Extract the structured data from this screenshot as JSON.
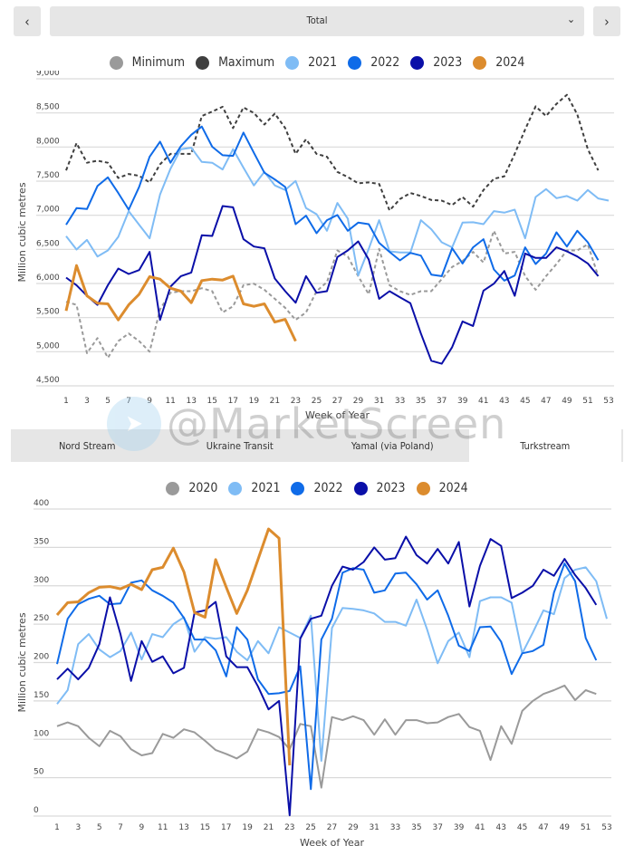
{
  "nav": {
    "prev_icon": "chevron-left-icon",
    "next_icon": "chevron-right-icon",
    "prev_glyph": "‹",
    "next_glyph": "›",
    "selected": "Total",
    "dropdown_glyph": "⌄"
  },
  "watermark": "@MarketScreen",
  "tabs": [
    {
      "label": "Nord Stream",
      "active": false
    },
    {
      "label": "Ukraine Transit",
      "active": false
    },
    {
      "label": "Yamal (via Poland)",
      "active": false
    },
    {
      "label": "Turkstream",
      "active": true
    }
  ],
  "chart_data": [
    {
      "type": "line",
      "ylabel": "Million cubic metres",
      "xlabel": "Week of Year",
      "ylim": [
        4500,
        9000
      ],
      "yticks": [
        "9,000",
        "8,500",
        "8,000",
        "7,500",
        "7,000",
        "6,500",
        "6,000",
        "5,500",
        "5,000",
        "4,500"
      ],
      "ytick_values": [
        9000,
        8500,
        8000,
        7500,
        7000,
        6500,
        6000,
        5500,
        5000,
        4500
      ],
      "xlim": [
        1,
        53
      ],
      "xticks": [
        "1",
        "3",
        "5",
        "7",
        "9",
        "11",
        "13",
        "15",
        "17",
        "19",
        "21",
        "23",
        "25",
        "27",
        "29",
        "31",
        "33",
        "35",
        "37",
        "39",
        "41",
        "43",
        "45",
        "47",
        "49",
        "51",
        "53"
      ],
      "grid": "horizontal",
      "legend": "top",
      "series": [
        {
          "name": "Minimum",
          "color": "#9a9a9a",
          "dashed": true,
          "values": [
            5732,
            5687,
            4979,
            5200,
            4912,
            5156,
            5267,
            5156,
            5000,
            5621,
            5864,
            5887,
            5887,
            5931,
            5887,
            5577,
            5665,
            5975,
            5998,
            5909,
            5776,
            5643,
            5466,
            5577,
            5887,
            6020,
            6485,
            6396,
            6108,
            5842,
            6507,
            5975,
            5887,
            5833,
            5887,
            5887,
            6064,
            6241,
            6330,
            6463,
            6308,
            6772,
            6440,
            6463,
            6108,
            5909,
            6108,
            6285,
            6485,
            6485,
            6573,
            6108
          ]
        },
        {
          "name": "Maximum",
          "color": "#3f3f3f",
          "dashed": true,
          "values": [
            7658,
            8057,
            7769,
            7800,
            7769,
            7547,
            7605,
            7578,
            7481,
            7747,
            7900,
            7900,
            7900,
            8455,
            8520,
            8590,
            8278,
            8580,
            8500,
            8330,
            8490,
            8278,
            7900,
            8114,
            7900,
            7857,
            7636,
            7560,
            7468,
            7481,
            7459,
            7070,
            7237,
            7326,
            7282,
            7224,
            7215,
            7149,
            7268,
            7126,
            7370,
            7534,
            7570,
            7900,
            8256,
            8597,
            8455,
            8632,
            8765,
            8477,
            7968,
            7658
          ]
        },
        {
          "name": "2021",
          "color": "#7fbcf5",
          "values": [
            6693,
            6498,
            6639,
            6396,
            6485,
            6684,
            7060,
            6861,
            6662,
            7304,
            7680,
            7968,
            7990,
            7782,
            7769,
            7671,
            7968,
            7698,
            7437,
            7636,
            7437,
            7370,
            7503,
            7105,
            7016,
            6772,
            7180,
            6950,
            6117,
            6507,
            6928,
            6471,
            6454,
            6454,
            6928,
            6795,
            6604,
            6529,
            6892,
            6897,
            6870,
            7060,
            7038,
            7082,
            6662,
            7268,
            7383,
            7251,
            7282,
            7215,
            7370,
            7246,
            7215
          ]
        },
        {
          "name": "2022",
          "color": "#0f6be8",
          "values": [
            6861,
            7105,
            7091,
            7428,
            7556,
            7326,
            7082,
            7415,
            7857,
            8079,
            7769,
            8012,
            8180,
            8300,
            8004,
            7880,
            7871,
            8212,
            7915,
            7623,
            7525,
            7415,
            6870,
            6994,
            6737,
            6928,
            7003,
            6772,
            6892,
            6870,
            6596,
            6463,
            6338,
            6449,
            6409,
            6130,
            6108,
            6516,
            6294,
            6529,
            6649,
            6206,
            6042,
            6117,
            6529,
            6285,
            6440,
            6750,
            6542,
            6772,
            6604,
            6343
          ]
        },
        {
          "name": "2023",
          "color": "#0a0fa8",
          "values": [
            6086,
            5975,
            5820,
            5687,
            5975,
            6219,
            6139,
            6197,
            6463,
            5466,
            5953,
            6108,
            6161,
            6706,
            6697,
            7135,
            7117,
            6649,
            6542,
            6516,
            6073,
            5887,
            5719,
            6108,
            5864,
            5887,
            6387,
            6485,
            6617,
            6352,
            5776,
            5887,
            5798,
            5710,
            5267,
            4868,
            4824,
            5067,
            5444,
            5377,
            5895,
            5998,
            6183,
            5820,
            6440,
            6374,
            6374,
            6529,
            6471,
            6396,
            6294,
            6108
          ]
        },
        {
          "name": "2024",
          "color": "#dc8c2e",
          "thick": true,
          "values": [
            5599,
            6263,
            5820,
            5710,
            5701,
            5466,
            5687,
            5842,
            6099,
            6064,
            5931,
            5887,
            5719,
            6042,
            6064,
            6051,
            6108,
            5701,
            5665,
            5701,
            5435,
            5475,
            5156
          ]
        }
      ]
    },
    {
      "type": "line",
      "ylabel": "Million cubic metres",
      "xlabel": "Week of Year",
      "ylim": [
        0,
        400
      ],
      "yticks": [
        "400",
        "350",
        "300",
        "250",
        "200",
        "150",
        "100",
        "50",
        "0"
      ],
      "ytick_values": [
        400,
        350,
        300,
        250,
        200,
        150,
        100,
        50,
        0
      ],
      "xlim": [
        1,
        53
      ],
      "xticks": [
        "1",
        "3",
        "5",
        "7",
        "9",
        "11",
        "13",
        "15",
        "17",
        "19",
        "21",
        "23",
        "25",
        "27",
        "29",
        "31",
        "33",
        "35",
        "37",
        "39",
        "41",
        "43",
        "45",
        "47",
        "49",
        "51",
        "53"
      ],
      "grid": "horizontal",
      "legend": "top",
      "series": [
        {
          "name": "2020",
          "color": "#9a9a9a",
          "values": [
            117,
            122,
            117,
            102,
            91,
            111,
            104,
            87,
            79,
            82,
            107,
            102,
            113,
            109,
            98,
            86,
            81,
            75,
            84,
            113,
            109,
            103,
            87,
            120,
            117,
            37,
            129,
            125,
            130,
            125,
            106,
            126,
            106,
            125,
            125,
            121,
            122,
            129,
            133,
            116,
            111,
            73,
            117,
            94,
            137,
            150,
            159,
            164,
            170,
            151,
            164,
            159
          ]
        },
        {
          "name": "2021",
          "color": "#7fbcf5",
          "values": [
            146,
            164,
            224,
            237,
            217,
            207,
            215,
            239,
            204,
            237,
            233,
            250,
            259,
            214,
            233,
            231,
            233,
            214,
            203,
            228,
            212,
            246,
            239,
            232,
            261,
            72,
            245,
            271,
            270,
            268,
            264,
            253,
            253,
            248,
            282,
            243,
            199,
            228,
            239,
            207,
            280,
            285,
            285,
            278,
            212,
            239,
            268,
            263,
            310,
            321,
            324,
            306,
            257
          ]
        },
        {
          "name": "2022",
          "color": "#0f6be8",
          "values": [
            198,
            257,
            276,
            283,
            287,
            276,
            277,
            304,
            307,
            294,
            287,
            278,
            258,
            230,
            230,
            216,
            182,
            246,
            230,
            178,
            159,
            160,
            163,
            195,
            35,
            230,
            257,
            317,
            323,
            321,
            291,
            294,
            316,
            317,
            302,
            282,
            294,
            261,
            222,
            215,
            246,
            247,
            227,
            185,
            212,
            215,
            223,
            291,
            329,
            306,
            232,
            203
          ]
        },
        {
          "name": "2023",
          "color": "#0a0fa8",
          "values": [
            178,
            192,
            178,
            193,
            224,
            285,
            237,
            176,
            228,
            201,
            208,
            186,
            193,
            265,
            268,
            279,
            208,
            194,
            194,
            169,
            139,
            150,
            1,
            231,
            257,
            261,
            300,
            325,
            321,
            331,
            350,
            334,
            336,
            364,
            340,
            329,
            348,
            329,
            357,
            273,
            326,
            361,
            352,
            284,
            291,
            300,
            321,
            313,
            335,
            314,
            297,
            275
          ]
        },
        {
          "name": "2024",
          "color": "#dc8c2e",
          "thick": true,
          "values": [
            262,
            278,
            279,
            291,
            298,
            299,
            296,
            302,
            295,
            321,
            324,
            349,
            318,
            265,
            259,
            334,
            298,
            264,
            294,
            334,
            374,
            362,
            66
          ]
        }
      ]
    }
  ]
}
